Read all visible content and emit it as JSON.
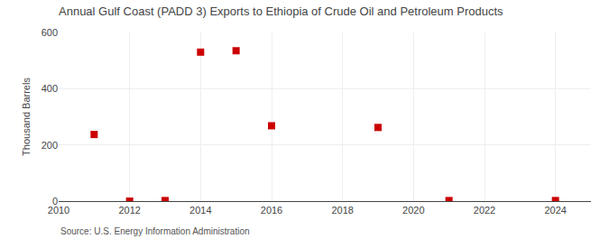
{
  "chart_data": {
    "type": "scatter",
    "title": "Annual Gulf Coast (PADD 3) Exports to Ethiopia of Crude Oil and Petroleum Products",
    "y_label": "Thousand Barrels",
    "annotations": [
      "Source: U.S. Energy Information Administration"
    ],
    "x": [
      2011,
      2012,
      2013,
      2014,
      2015,
      2016,
      2019,
      2021,
      2024
    ],
    "values": [
      237,
      0,
      2,
      530,
      535,
      268,
      262,
      2,
      2
    ],
    "color": "#cc0000",
    "marker": "square",
    "xlim": [
      2010,
      2025
    ],
    "xticks": [
      2010,
      2012,
      2014,
      2016,
      2018,
      2020,
      2022,
      2024
    ],
    "ylim": [
      0,
      600
    ],
    "yticks": [
      0,
      200,
      400,
      600
    ],
    "grid": true
  }
}
